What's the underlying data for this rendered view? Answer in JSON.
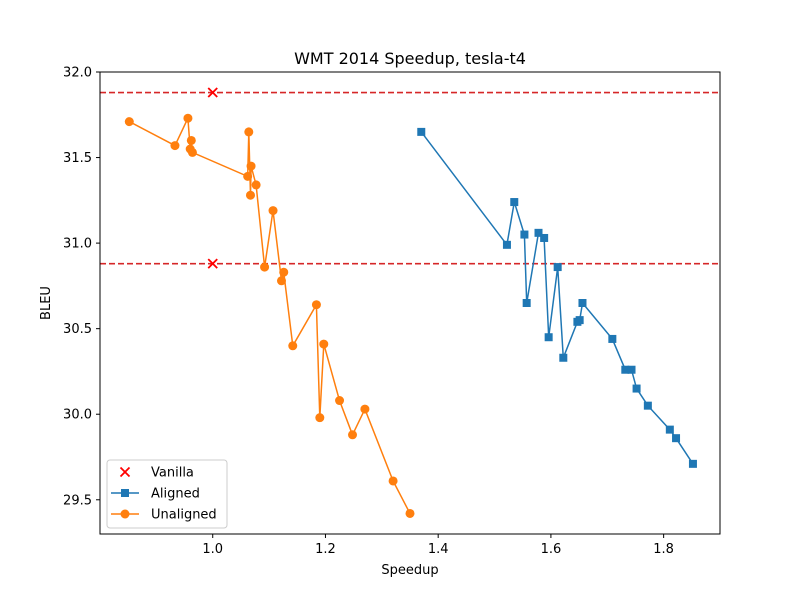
{
  "chart_data": {
    "type": "line",
    "title": "WMT 2014 Speedup, tesla-t4",
    "xlabel": "Speedup",
    "ylabel": "BLEU",
    "xlim": [
      0.8,
      1.9
    ],
    "ylim": [
      29.3,
      32.0
    ],
    "xticks": [
      1.0,
      1.2,
      1.4,
      1.6,
      1.8
    ],
    "xtick_labels": [
      "1.0",
      "1.2",
      "1.4",
      "1.6",
      "1.8"
    ],
    "yticks": [
      29.5,
      30.0,
      30.5,
      31.0,
      31.5,
      32.0
    ],
    "ytick_labels": [
      "29.5",
      "30.0",
      "30.5",
      "31.0",
      "31.5",
      "32.0"
    ],
    "grid": false,
    "legend_position": "lower-left",
    "hlines": [
      {
        "y": 31.88,
        "color": "#d62728",
        "style": "dashed"
      },
      {
        "y": 30.88,
        "color": "#d62728",
        "style": "dashed"
      }
    ],
    "series": [
      {
        "name": "Vanilla",
        "kind": "scatter",
        "marker": "x",
        "color": "#ff0000",
        "x": [
          1.0,
          1.0
        ],
        "y": [
          31.88,
          30.88
        ]
      },
      {
        "name": "Aligned",
        "kind": "line",
        "marker": "square",
        "color": "#1f77b4",
        "x": [
          1.37,
          1.522,
          1.535,
          1.553,
          1.557,
          1.578,
          1.588,
          1.596,
          1.612,
          1.622,
          1.647,
          1.651,
          1.656,
          1.709,
          1.732,
          1.743,
          1.752,
          1.772,
          1.811,
          1.822,
          1.852
        ],
        "y": [
          31.65,
          30.99,
          31.24,
          31.05,
          30.65,
          31.06,
          31.03,
          30.45,
          30.86,
          30.33,
          30.54,
          30.55,
          30.65,
          30.44,
          30.26,
          30.26,
          30.15,
          30.05,
          29.91,
          29.86,
          29.71
        ]
      },
      {
        "name": "Unaligned",
        "kind": "line",
        "marker": "circle",
        "color": "#ff7f0e",
        "x": [
          0.852,
          0.933,
          0.956,
          0.96,
          0.962,
          0.964,
          1.062,
          1.064,
          1.067,
          1.068,
          1.077,
          1.092,
          1.107,
          1.122,
          1.126,
          1.142,
          1.184,
          1.19,
          1.197,
          1.225,
          1.248,
          1.27,
          1.32,
          1.35
        ],
        "y": [
          31.71,
          31.57,
          31.73,
          31.55,
          31.6,
          31.53,
          31.39,
          31.65,
          31.28,
          31.45,
          31.34,
          30.86,
          31.19,
          30.78,
          30.83,
          30.4,
          30.64,
          29.98,
          30.41,
          30.08,
          29.88,
          30.03,
          29.61,
          29.42
        ]
      }
    ]
  }
}
